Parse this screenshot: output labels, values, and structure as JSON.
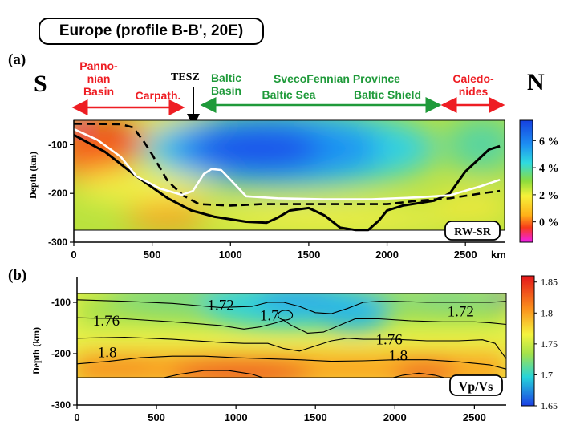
{
  "header": {
    "title": "Europe (profile B-B', 20E)",
    "direction_left": "S",
    "direction_right": "N"
  },
  "regions": {
    "red": [
      {
        "label": "Panno-\nnian\nBasin"
      },
      {
        "label": "Carpath."
      },
      {
        "label": "Caledo-\nnides"
      }
    ],
    "tesz": "TESZ",
    "green": [
      {
        "label": "Baltic\nBasin"
      },
      {
        "label": "SvecoFennian Province"
      },
      {
        "label": "Baltic Sea"
      },
      {
        "label": "Baltic Shield"
      }
    ]
  },
  "colors": {
    "red_arrow": "#ee1d23",
    "green_arrow": "#1f9a3a",
    "white_line": "#ffffff",
    "black_line": "#000000"
  },
  "chart_data": [
    {
      "panel": "(a)",
      "type": "heatmap",
      "xlabel": "km",
      "ylabel": "Depth (km)",
      "xlim": [
        0,
        2750
      ],
      "ylim": [
        -300,
        -50
      ],
      "xticks": [
        "0",
        "500",
        "1000",
        "1500",
        "2000",
        "2500"
      ],
      "yticks": [
        "-100",
        "-200",
        "-300"
      ],
      "badge": "RW-SR",
      "colorbar": {
        "ticks": [
          "6 %",
          "4 %",
          "2 %",
          "0 %"
        ],
        "tick_values": [
          6,
          4,
          2,
          0
        ],
        "range": [
          -1.5,
          7.5
        ]
      },
      "lines": [
        {
          "style": "solid-black",
          "x": [
            0,
            200,
            400,
            600,
            750,
            900,
            1100,
            1230,
            1300,
            1380,
            1500,
            1600,
            1700,
            1800,
            1880,
            1950,
            2000,
            2100,
            2300,
            2400,
            2500,
            2650,
            2720
          ],
          "y": [
            -80,
            -115,
            -165,
            -210,
            -235,
            -248,
            -258,
            -260,
            -250,
            -235,
            -230,
            -245,
            -270,
            -275,
            -275,
            -255,
            -235,
            -225,
            -215,
            -200,
            -155,
            -110,
            -103
          ]
        },
        {
          "style": "dashed-black",
          "x": [
            0,
            300,
            380,
            450,
            500,
            600,
            700,
            800,
            1000,
            1200,
            1500,
            1800,
            2000,
            2200,
            2400,
            2600,
            2720
          ],
          "y": [
            -57,
            -58,
            -65,
            -95,
            -120,
            -175,
            -205,
            -222,
            -225,
            -222,
            -222,
            -222,
            -222,
            -215,
            -210,
            -200,
            -195
          ]
        },
        {
          "style": "solid-white",
          "x": [
            0,
            150,
            300,
            400,
            550,
            690,
            760,
            830,
            880,
            940,
            1000,
            1100,
            1300,
            1600,
            1900,
            2200,
            2400,
            2600,
            2720
          ],
          "y": [
            -68,
            -90,
            -125,
            -165,
            -190,
            -203,
            -195,
            -160,
            -150,
            -152,
            -172,
            -206,
            -210,
            -212,
            -212,
            -208,
            -204,
            -185,
            -172
          ]
        }
      ]
    },
    {
      "panel": "(b)",
      "type": "heatmap",
      "xlabel": "",
      "ylabel": "Depth (km)",
      "xlim": [
        0,
        2700
      ],
      "ylim": [
        -300,
        -50
      ],
      "xticks": [
        "0",
        "500",
        "1000",
        "1500",
        "2000",
        "2500"
      ],
      "yticks": [
        "-100",
        "-200",
        "-300"
      ],
      "badge": "Vp/Vs",
      "colorbar": {
        "ticks": [
          "1.85",
          "1.8",
          "1.75",
          "1.7",
          "1.65"
        ],
        "tick_values": [
          1.85,
          1.8,
          1.75,
          1.7,
          1.65
        ],
        "range": [
          1.65,
          1.86
        ]
      },
      "contour_labels": [
        {
          "text": "1.72",
          "x": 820,
          "y": -115
        },
        {
          "text": "1.7",
          "x": 1150,
          "y": -135
        },
        {
          "text": "1.76",
          "x": 100,
          "y": -145
        },
        {
          "text": "1.8",
          "x": 130,
          "y": -207
        },
        {
          "text": "1.76",
          "x": 1880,
          "y": -182
        },
        {
          "text": "1.8",
          "x": 1960,
          "y": -213
        },
        {
          "text": "1.72",
          "x": 2330,
          "y": -127
        }
      ],
      "contours": [
        {
          "x": [
            0,
            300,
            600,
            900,
            1100,
            1200,
            1300,
            1400,
            1500,
            1600,
            1700,
            1800,
            1900,
            2000,
            2200,
            2400,
            2600,
            2700
          ],
          "y": [
            -95,
            -98,
            -102,
            -110,
            -108,
            -100,
            -100,
            -108,
            -120,
            -122,
            -112,
            -100,
            -98,
            -98,
            -100,
            -100,
            -100,
            -98
          ]
        },
        {
          "x": [
            0,
            300,
            600,
            900,
            1050,
            1150,
            1250,
            1300,
            1350,
            1450,
            1550,
            1650,
            1750,
            1900,
            2100,
            2300,
            2500,
            2600,
            2700
          ],
          "y": [
            -130,
            -132,
            -138,
            -145,
            -152,
            -148,
            -140,
            -135,
            -145,
            -160,
            -158,
            -145,
            -132,
            -132,
            -136,
            -138,
            -138,
            -140,
            -143
          ]
        },
        {
          "x": [
            0,
            300,
            600,
            900,
            1050,
            1200,
            1300,
            1400,
            1500,
            1600,
            1700,
            1800,
            2000,
            2200,
            2400,
            2550,
            2630,
            2700
          ],
          "y": [
            -170,
            -168,
            -172,
            -178,
            -180,
            -180,
            -190,
            -195,
            -185,
            -175,
            -170,
            -172,
            -172,
            -175,
            -175,
            -173,
            -180,
            -210
          ]
        },
        {
          "x": [
            0,
            200,
            400,
            600,
            800,
            1000,
            1200,
            1400,
            1600,
            1800,
            2000,
            2200,
            2400,
            2600,
            2700
          ],
          "y": [
            -220,
            -215,
            -208,
            -205,
            -205,
            -208,
            -210,
            -212,
            -215,
            -214,
            -212,
            -212,
            -216,
            -222,
            -230
          ]
        },
        {
          "x": [
            500,
            650,
            800,
            950,
            1100,
            1200
          ],
          "y": [
            -250,
            -240,
            -233,
            -233,
            -240,
            -250
          ]
        },
        {
          "x": [
            1950,
            2050,
            2150,
            2250,
            2350
          ],
          "y": [
            -250,
            -242,
            -238,
            -242,
            -250
          ]
        }
      ]
    }
  ]
}
